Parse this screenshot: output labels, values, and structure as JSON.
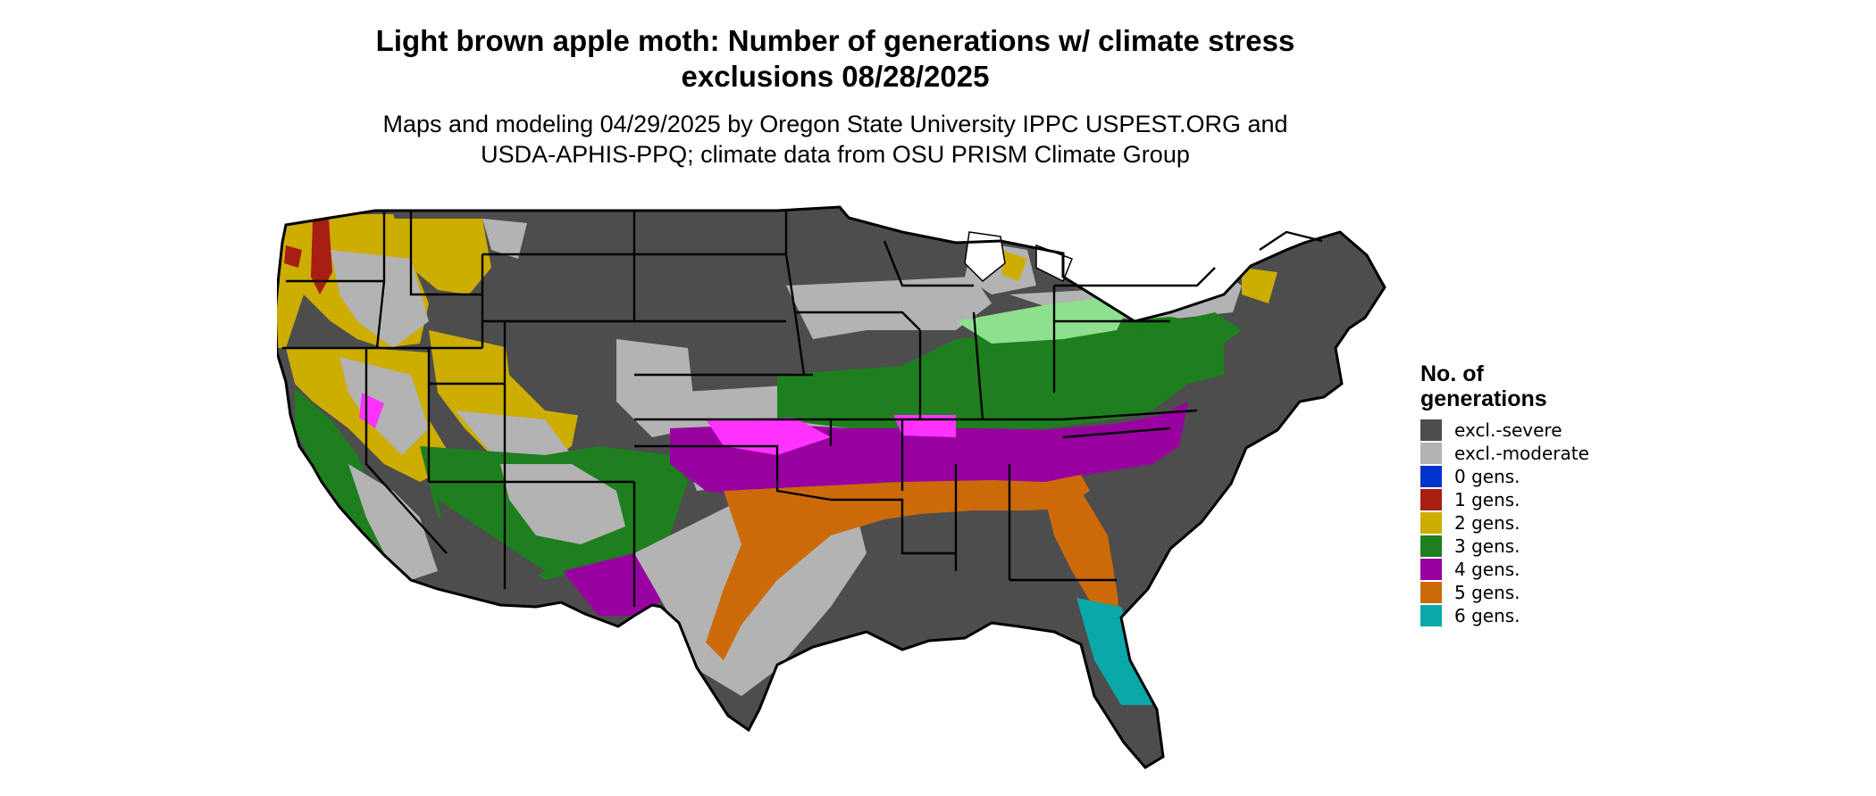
{
  "title": {
    "line1": "Light brown apple moth: Number of generations w/ climate stress",
    "line2": "exclusions 08/28/2025"
  },
  "subtitle": {
    "line1": "Maps and modeling 04/29/2025 by Oregon State University IPPC USPEST.ORG and",
    "line2": "USDA-APHIS-PPQ; climate data from OSU PRISM Climate Group"
  },
  "legend": {
    "title_line1": "No. of",
    "title_line2": "generations",
    "items": [
      {
        "label": "excl.-severe",
        "color": "#4d4d4d"
      },
      {
        "label": "excl.-moderate",
        "color": "#b3b3b3"
      },
      {
        "label": "0 gens.",
        "color": "#0033cc"
      },
      {
        "label": "1 gens.",
        "color": "#a81e12"
      },
      {
        "label": "2 gens.",
        "color": "#ccad00"
      },
      {
        "label": "3 gens.",
        "color": "#1e7f1e"
      },
      {
        "label": "4 gens.",
        "color": "#9900a0"
      },
      {
        "label": "5 gens.",
        "color": "#cc6a0a"
      },
      {
        "label": "6 gens.",
        "color": "#0aa8a8"
      }
    ]
  },
  "map_colors": {
    "light_green": "#8ee08e",
    "bright_magenta": "#ff33ff",
    "border": "#000000",
    "lake": "#ffffff"
  }
}
